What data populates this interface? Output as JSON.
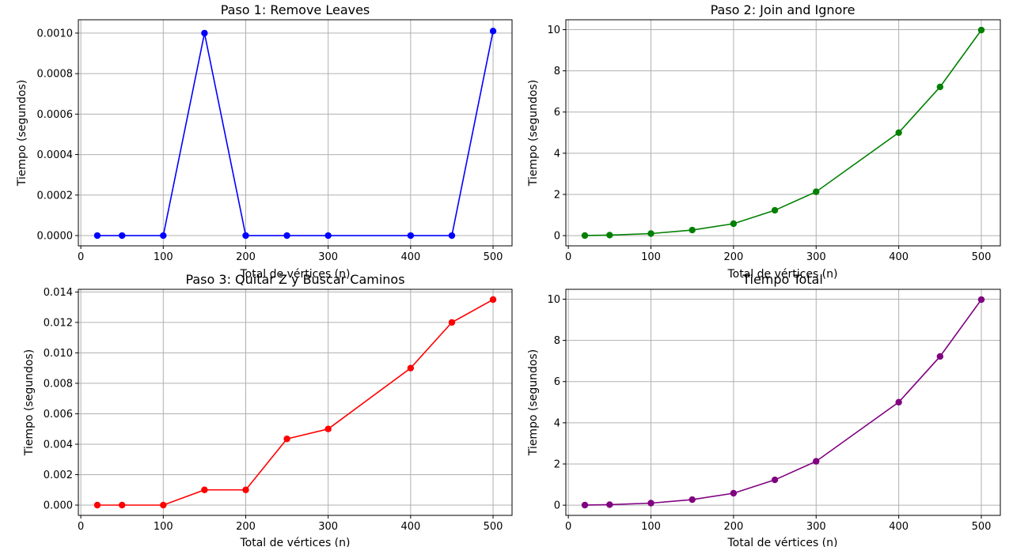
{
  "chart_data": [
    {
      "type": "line",
      "title": "Paso 1: Remove Leaves",
      "xlabel": "Total de vértices (n)",
      "ylabel": "Tiempo (segundos)",
      "color": "#0000ff",
      "x": [
        20,
        50,
        100,
        150,
        200,
        250,
        300,
        400,
        450,
        500
      ],
      "y": [
        0,
        0,
        0,
        0.001,
        0,
        0,
        0,
        0,
        0,
        0.00101
      ],
      "xlim": [
        -3,
        523
      ],
      "ylim": [
        -5.07e-05,
        0.001066
      ],
      "xticks": [
        0,
        100,
        200,
        300,
        400,
        500
      ],
      "xtick_labels": [
        "0",
        "100",
        "200",
        "300",
        "400",
        "500"
      ],
      "yticks": [
        0,
        0.0002,
        0.0004,
        0.0006,
        0.0008,
        0.001
      ],
      "ytick_labels": [
        "0.0000",
        "0.0002",
        "0.0004",
        "0.0006",
        "0.0008",
        "0.0010"
      ],
      "grid": true
    },
    {
      "type": "line",
      "title": "Paso 2: Join and Ignore",
      "xlabel": "Total de vértices (n)",
      "ylabel": "Tiempo (segundos)",
      "color": "#008000",
      "x": [
        20,
        50,
        100,
        150,
        200,
        250,
        300,
        400,
        450,
        500
      ],
      "y": [
        0.005,
        0.025,
        0.1,
        0.27,
        0.58,
        1.23,
        2.13,
        5.0,
        7.22,
        9.98
      ],
      "xlim": [
        -3,
        523
      ],
      "ylim": [
        -0.495,
        10.48
      ],
      "xticks": [
        0,
        100,
        200,
        300,
        400,
        500
      ],
      "xtick_labels": [
        "0",
        "100",
        "200",
        "300",
        "400",
        "500"
      ],
      "yticks": [
        0,
        2,
        4,
        6,
        8,
        10
      ],
      "ytick_labels": [
        "0",
        "2",
        "4",
        "6",
        "8",
        "10"
      ],
      "grid": true
    },
    {
      "type": "line",
      "title": "Paso 3: Quitar Z y Buscar Caminos",
      "xlabel": "Total de vértices (n)",
      "ylabel": "Tiempo (segundos)",
      "color": "#ff0000",
      "x": [
        20,
        50,
        100,
        150,
        200,
        250,
        300,
        400,
        450,
        500
      ],
      "y": [
        0,
        0,
        0,
        0.001,
        0.001,
        0.00435,
        0.005,
        0.009,
        0.012,
        0.0135
      ],
      "xlim": [
        -3,
        523
      ],
      "ylim": [
        -0.000675,
        0.014175
      ],
      "xticks": [
        0,
        100,
        200,
        300,
        400,
        500
      ],
      "xtick_labels": [
        "0",
        "100",
        "200",
        "300",
        "400",
        "500"
      ],
      "yticks": [
        0,
        0.002,
        0.004,
        0.006,
        0.008,
        0.01,
        0.012,
        0.014
      ],
      "ytick_labels": [
        "0.000",
        "0.002",
        "0.004",
        "0.006",
        "0.008",
        "0.010",
        "0.012",
        "0.014"
      ],
      "grid": true
    },
    {
      "type": "line",
      "title": "Tiempo Total",
      "xlabel": "Total de vértices (n)",
      "ylabel": "Tiempo (segundos)",
      "color": "#800080",
      "x": [
        20,
        50,
        100,
        150,
        200,
        250,
        300,
        400,
        450,
        500
      ],
      "y": [
        0.005,
        0.025,
        0.1,
        0.27,
        0.58,
        1.23,
        2.13,
        5.0,
        7.22,
        9.98
      ],
      "xlim": [
        -3,
        523
      ],
      "ylim": [
        -0.495,
        10.48
      ],
      "xticks": [
        0,
        100,
        200,
        300,
        400,
        500
      ],
      "xtick_labels": [
        "0",
        "100",
        "200",
        "300",
        "400",
        "500"
      ],
      "yticks": [
        0,
        2,
        4,
        6,
        8,
        10
      ],
      "ytick_labels": [
        "0",
        "2",
        "4",
        "6",
        "8",
        "10"
      ],
      "grid": true
    }
  ]
}
